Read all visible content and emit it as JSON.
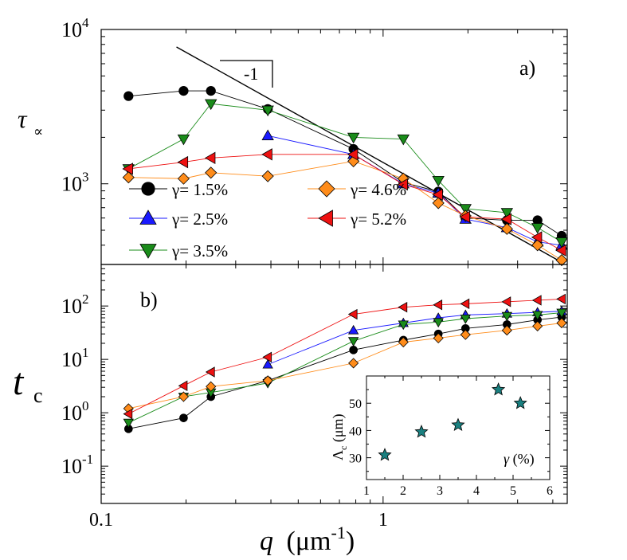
{
  "chart_data": [
    {
      "type": "scatter",
      "panel_label": "a)",
      "xscale": "log",
      "yscale": "log",
      "xlim": [
        0.1,
        4.5
      ],
      "ylim": [
        300,
        10000
      ],
      "ylabel": "τ",
      "ylabel_sub": "∝",
      "yticks": [
        {
          "value": 1000,
          "base": "10",
          "exp": "3"
        },
        {
          "value": 10000,
          "base": "10",
          "exp": "4"
        }
      ],
      "slope_label": "-1",
      "fit_line": {
        "x": [
          0.185,
          4.3
        ],
        "y": [
          7700,
          310
        ]
      },
      "series": [
        {
          "name": "γ= 1.5%",
          "color": "#000000",
          "marker": "circle",
          "x": [
            0.125,
            0.196,
            0.245,
            0.39,
            0.785,
            1.18,
            1.57,
            1.96,
            2.75,
            3.53,
            4.3
          ],
          "y": [
            3700,
            4000,
            4000,
            3050,
            1680,
            1020,
            890,
            600,
            580,
            580,
            460
          ]
        },
        {
          "name": "γ= 2.5%",
          "color": "#1a1aff",
          "marker": "triangle-up",
          "x": [
            0.39,
            0.785,
            1.18,
            1.57,
            1.96,
            2.75,
            3.53,
            4.3
          ],
          "y": [
            2050,
            1550,
            1000,
            870,
            590,
            520,
            420,
            400
          ]
        },
        {
          "name": "γ= 3.5%",
          "color": "#1a8c1a",
          "marker": "triangle-down",
          "x": [
            0.125,
            0.196,
            0.245,
            0.39,
            0.785,
            1.18,
            1.57,
            1.96,
            2.75,
            3.53,
            4.3
          ],
          "y": [
            1250,
            1950,
            3300,
            3000,
            2000,
            1950,
            1050,
            690,
            650,
            520,
            420
          ]
        },
        {
          "name": "γ= 4.6%",
          "color": "#ff8c1a",
          "marker": "diamond",
          "x": [
            0.125,
            0.196,
            0.245,
            0.39,
            0.785,
            1.18,
            1.57,
            1.96,
            2.75,
            3.53,
            4.3
          ],
          "y": [
            1100,
            1080,
            1180,
            1120,
            1400,
            1080,
            750,
            620,
            510,
            400,
            320
          ]
        },
        {
          "name": "γ= 5.2%",
          "color": "#ee1111",
          "marker": "triangle-left",
          "x": [
            0.125,
            0.196,
            0.245,
            0.39,
            0.785,
            1.18,
            1.57,
            1.96,
            2.75,
            3.53,
            4.3
          ],
          "y": [
            1250,
            1380,
            1470,
            1550,
            1550,
            990,
            850,
            610,
            590,
            450,
            370
          ]
        }
      ]
    },
    {
      "type": "scatter",
      "panel_label": "b)",
      "xscale": "log",
      "yscale": "log",
      "xlim": [
        0.1,
        4.5
      ],
      "ylim": [
        0.02,
        600
      ],
      "xlabel": "q (μm",
      "xlabel_exp": "-1",
      "xlabel_close": ")",
      "xticks": [
        {
          "value": 0.1,
          "label": "0.1"
        },
        {
          "value": 1,
          "label": "1"
        }
      ],
      "ylabel": "t",
      "ylabel_sub": "c",
      "yticks": [
        {
          "value": 0.1,
          "base": "10",
          "exp": "-1"
        },
        {
          "value": 1,
          "label": "10",
          "exp_sep": "0",
          "main": "10",
          "exp": "0"
        },
        {
          "value": 10,
          "base": "10",
          "exp": "1"
        },
        {
          "value": 100,
          "base": "10",
          "exp": "2"
        }
      ],
      "series": [
        {
          "name": "γ= 1.5%",
          "color": "#000000",
          "marker": "circle",
          "x": [
            0.125,
            0.196,
            0.245,
            0.39,
            0.785,
            1.18,
            1.57,
            1.96,
            2.75,
            3.53,
            4.3
          ],
          "y": [
            0.5,
            0.8,
            2.0,
            4.0,
            15,
            23,
            30,
            38,
            45,
            55,
            62
          ]
        },
        {
          "name": "γ= 2.5%",
          "color": "#1a1aff",
          "marker": "triangle-up",
          "x": [
            0.39,
            0.785,
            1.18,
            1.57,
            1.96,
            2.75,
            3.53,
            4.3
          ],
          "y": [
            8,
            35,
            48,
            60,
            68,
            72,
            76,
            80
          ]
        },
        {
          "name": "γ= 3.5%",
          "color": "#1a8c1a",
          "marker": "triangle-down",
          "x": [
            0.125,
            0.196,
            0.245,
            0.39,
            0.785,
            1.18,
            1.57,
            1.96,
            2.75,
            3.53,
            4.3
          ],
          "y": [
            0.65,
            2.0,
            2.4,
            3.6,
            22,
            45,
            50,
            58,
            65,
            68,
            75
          ]
        },
        {
          "name": "γ= 4.6%",
          "color": "#ff8c1a",
          "marker": "diamond",
          "x": [
            0.125,
            0.196,
            0.245,
            0.39,
            0.785,
            1.18,
            1.57,
            1.96,
            2.75,
            3.53,
            4.3
          ],
          "y": [
            1.2,
            2.0,
            3.1,
            4.0,
            8.5,
            21,
            25,
            29,
            35,
            42,
            48
          ]
        },
        {
          "name": "γ= 5.2%",
          "color": "#ee1111",
          "marker": "triangle-left",
          "x": [
            0.125,
            0.196,
            0.245,
            0.39,
            0.785,
            1.18,
            1.57,
            1.96,
            2.75,
            3.53,
            4.3
          ],
          "y": [
            0.95,
            3.2,
            5.8,
            11,
            70,
            95,
            105,
            110,
            120,
            128,
            135
          ]
        }
      ],
      "inset": {
        "type": "scatter",
        "xlim": [
          1,
          6
        ],
        "ylim": [
          22,
          60
        ],
        "xticks": [
          1,
          2,
          3,
          4,
          5,
          6
        ],
        "yticks": [
          30,
          40,
          50
        ],
        "xlabel": "γ (%)",
        "ylabel": "Λ",
        "ylabel_sub": "c",
        "ylabel_unit": " (μm)",
        "marker": "star",
        "color": "#1a8080",
        "x": [
          1.5,
          2.5,
          3.5,
          4.6,
          5.2
        ],
        "y": [
          31,
          39.5,
          42,
          55,
          50
        ]
      }
    }
  ]
}
